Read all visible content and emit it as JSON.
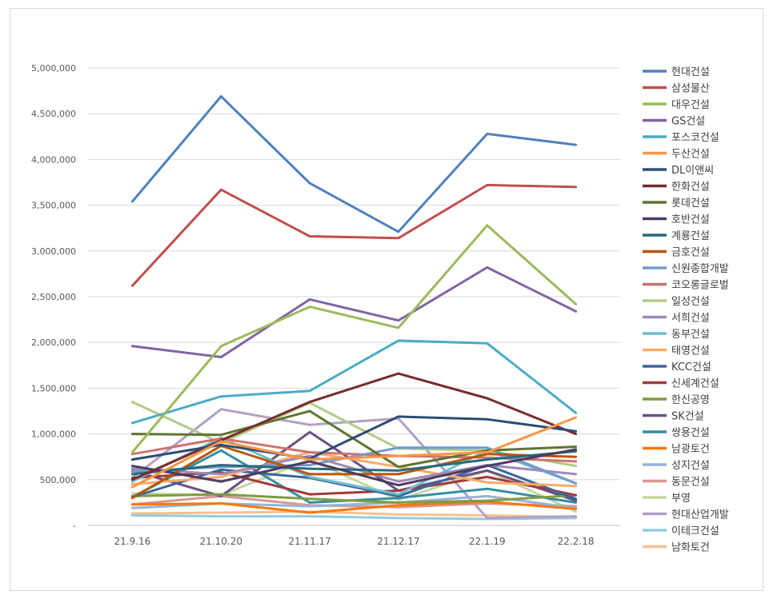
{
  "chart_data": {
    "type": "line",
    "title": "",
    "xlabel": "",
    "ylabel": "",
    "x": [
      "21.9.16",
      "21.10.20",
      "21.11.17",
      "21.12.17",
      "22.1.19",
      "22.2.18"
    ],
    "ylim": [
      0,
      5000000
    ],
    "yticks": [
      0,
      500000,
      1000000,
      1500000,
      2000000,
      2500000,
      3000000,
      3500000,
      4000000,
      4500000,
      5000000
    ],
    "ytick_labels": [
      "-",
      "500,000",
      "1,000,000",
      "1,500,000",
      "2,000,000",
      "2,500,000",
      "3,000,000",
      "3,500,000",
      "4,000,000",
      "4,500,000",
      "5,000,000"
    ],
    "grid": true,
    "legend_position": "right",
    "series": [
      {
        "name": "현대건설",
        "color": "#4f81bd",
        "values": [
          3540000,
          4690000,
          3740000,
          3210000,
          4280000,
          4160000
        ]
      },
      {
        "name": "삼성물산",
        "color": "#c0504d",
        "values": [
          2620000,
          3670000,
          3160000,
          3140000,
          3720000,
          3700000
        ]
      },
      {
        "name": "대우건설",
        "color": "#9bbb59",
        "values": [
          800000,
          1960000,
          2390000,
          2160000,
          3280000,
          2420000
        ]
      },
      {
        "name": "GS건설",
        "color": "#8064a2",
        "values": [
          1960000,
          1840000,
          2470000,
          2240000,
          2820000,
          2340000
        ]
      },
      {
        "name": "포스코건설",
        "color": "#4bacc6",
        "values": [
          1120000,
          1410000,
          1470000,
          2020000,
          1990000,
          1230000
        ]
      },
      {
        "name": "두산건설",
        "color": "#f79646",
        "values": [
          420000,
          920000,
          720000,
          760000,
          800000,
          1180000
        ]
      },
      {
        "name": "DL이앤씨",
        "color": "#2c4d75",
        "values": [
          720000,
          880000,
          730000,
          1190000,
          1160000,
          1030000
        ]
      },
      {
        "name": "한화건설",
        "color": "#772c2a",
        "values": [
          500000,
          930000,
          1350000,
          1660000,
          1390000,
          1000000
        ]
      },
      {
        "name": "롯데건설",
        "color": "#5f7530",
        "values": [
          1000000,
          990000,
          1250000,
          640000,
          820000,
          860000
        ]
      },
      {
        "name": "호반건설",
        "color": "#4d3b62",
        "values": [
          650000,
          480000,
          700000,
          440000,
          650000,
          830000
        ]
      },
      {
        "name": "계룡건설",
        "color": "#276a7c",
        "values": [
          560000,
          660000,
          620000,
          600000,
          720000,
          810000
        ]
      },
      {
        "name": "금호건설",
        "color": "#b65708",
        "values": [
          300000,
          870000,
          560000,
          560000,
          780000,
          750000
        ]
      },
      {
        "name": "신원종합개발",
        "color": "#729aca",
        "values": [
          590000,
          640000,
          660000,
          850000,
          850000,
          460000
        ]
      },
      {
        "name": "코오롱글로벌",
        "color": "#cd7371",
        "values": [
          780000,
          950000,
          800000,
          760000,
          740000,
          700000
        ]
      },
      {
        "name": "일성건설",
        "color": "#b2cb86",
        "values": [
          1350000,
          900000,
          1340000,
          840000,
          820000,
          650000
        ]
      },
      {
        "name": "서희건설",
        "color": "#9e8ab6",
        "values": [
          620000,
          560000,
          760000,
          480000,
          660000,
          560000
        ]
      },
      {
        "name": "동부건설",
        "color": "#6fbdd1",
        "values": [
          480000,
          960000,
          530000,
          340000,
          820000,
          460000
        ]
      },
      {
        "name": "태영건설",
        "color": "#f9ab6b",
        "values": [
          450000,
          530000,
          800000,
          640000,
          470000,
          430000
        ]
      },
      {
        "name": "KCC건설",
        "color": "#3a679c",
        "values": [
          310000,
          610000,
          520000,
          320000,
          660000,
          290000
        ]
      },
      {
        "name": "신세계건설",
        "color": "#9f3b38",
        "values": [
          520000,
          580000,
          340000,
          380000,
          530000,
          330000
        ]
      },
      {
        "name": "한신공영",
        "color": "#7f9c40",
        "values": [
          320000,
          340000,
          290000,
          250000,
          270000,
          330000
        ]
      },
      {
        "name": "SK건설",
        "color": "#6a5083",
        "values": [
          600000,
          320000,
          1020000,
          380000,
          600000,
          270000
        ]
      },
      {
        "name": "쌍용건설",
        "color": "#348da4",
        "values": [
          310000,
          820000,
          250000,
          300000,
          400000,
          250000
        ]
      },
      {
        "name": "남광토건",
        "color": "#f4790c",
        "values": [
          230000,
          240000,
          140000,
          220000,
          260000,
          180000
        ]
      },
      {
        "name": "성지건설",
        "color": "#95b3d7",
        "values": [
          190000,
          240000,
          210000,
          250000,
          320000,
          190000
        ]
      },
      {
        "name": "동문건설",
        "color": "#da9694",
        "values": [
          230000,
          320000,
          220000,
          200000,
          240000,
          210000
        ]
      },
      {
        "name": "부영",
        "color": "#c4d79b",
        "values": [
          350000,
          330000,
          720000,
          280000,
          600000,
          150000
        ]
      },
      {
        "name": "현대산업개발",
        "color": "#b1a0c7",
        "values": [
          520000,
          1270000,
          1100000,
          1170000,
          80000,
          100000
        ]
      },
      {
        "name": "이테크건설",
        "color": "#92cddc",
        "values": [
          110000,
          100000,
          100000,
          80000,
          70000,
          80000
        ]
      },
      {
        "name": "남화토건",
        "color": "#fac090",
        "values": [
          130000,
          140000,
          150000,
          120000,
          110000,
          90000
        ]
      }
    ]
  }
}
